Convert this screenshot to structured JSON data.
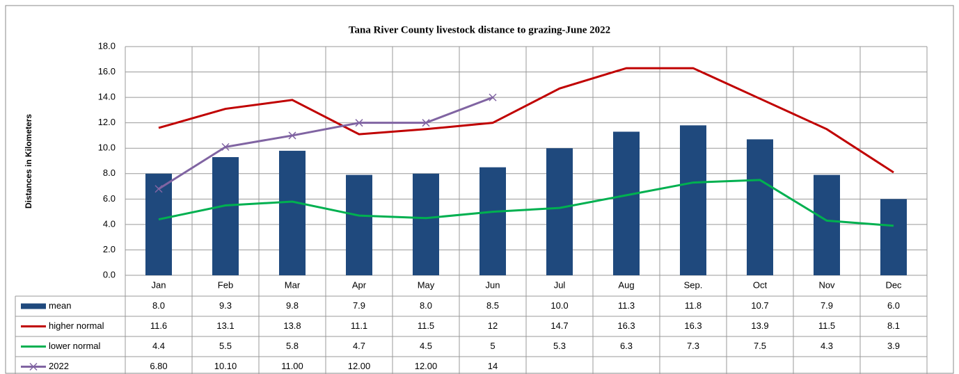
{
  "chart_data": {
    "type": "bar",
    "title": "Tana River County livestock distance to grazing-June 2022",
    "y_label": "Distances in Kilometers",
    "categories": [
      "Jan",
      "Feb",
      "Mar",
      "Apr",
      "May",
      "Jun",
      "Jul",
      "Aug",
      "Sep.",
      "Oct",
      "Nov",
      "Dec"
    ],
    "ylim": [
      0,
      18
    ],
    "yticks": [
      {
        "value": 0,
        "label": "0.0"
      },
      {
        "value": 2,
        "label": "2.0"
      },
      {
        "value": 4,
        "label": "4.0"
      },
      {
        "value": 6,
        "label": "6.0"
      },
      {
        "value": 8,
        "label": "8.0"
      },
      {
        "value": 10,
        "label": "10.0"
      },
      {
        "value": 12,
        "label": "12.0"
      },
      {
        "value": 14,
        "label": "14.0"
      },
      {
        "value": 16,
        "label": "16.0"
      },
      {
        "value": 18,
        "label": "18.0"
      }
    ],
    "grid": true,
    "series": [
      {
        "name": "mean",
        "type": "bar",
        "color": "#1f497d",
        "values": [
          8.0,
          9.3,
          9.8,
          7.9,
          8.0,
          8.5,
          10.0,
          11.3,
          11.8,
          10.7,
          7.9,
          6.0
        ],
        "value_labels": [
          "8.0",
          "9.3",
          "9.8",
          "7.9",
          "8.0",
          "8.5",
          "10.0",
          "11.3",
          "11.8",
          "10.7",
          "7.9",
          "6.0"
        ]
      },
      {
        "name": "higher normal",
        "type": "line",
        "color": "#c00000",
        "values": [
          11.6,
          13.1,
          13.8,
          11.1,
          11.5,
          12.0,
          14.7,
          16.3,
          16.3,
          13.9,
          11.5,
          8.1
        ]
      },
      {
        "name": "lower normal",
        "type": "line",
        "color": "#00b050",
        "values": [
          4.4,
          5.5,
          5.8,
          4.7,
          4.5,
          5.0,
          5.3,
          6.3,
          7.3,
          7.5,
          4.3,
          3.9
        ]
      },
      {
        "name": "2022",
        "type": "line",
        "marker": "x",
        "color": "#8064a2",
        "values": [
          6.8,
          10.1,
          11.0,
          12.0,
          12.0,
          14,
          null,
          null,
          null,
          null,
          null,
          null
        ],
        "value_labels": [
          "6.80",
          "10.10",
          "11.00",
          "12.00",
          "12.00",
          "14",
          null,
          null,
          null,
          null,
          null,
          null
        ]
      }
    ]
  }
}
